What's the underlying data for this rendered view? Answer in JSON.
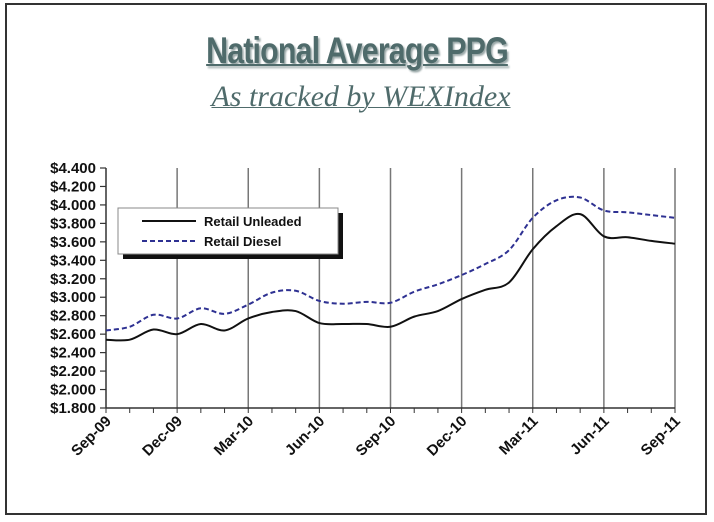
{
  "title": "National Average PPG",
  "subtitle": "As tracked by WEXIndex",
  "colors": {
    "unleaded": "#111111",
    "diesel": "#2e3192",
    "title": "#4f6b6b"
  },
  "chart_data": {
    "type": "line",
    "title": "National Average PPG",
    "subtitle": "As tracked by WEXIndex",
    "xlabel": "",
    "ylabel": "",
    "ylim": [
      1.8,
      4.4
    ],
    "yticks": [
      1.8,
      2.0,
      2.2,
      2.4,
      2.6,
      2.8,
      3.0,
      3.2,
      3.4,
      3.6,
      3.8,
      4.0,
      4.2,
      4.4
    ],
    "ytick_labels": [
      "$1.800",
      "$2.000",
      "$2.200",
      "$2.400",
      "$2.600",
      "$2.800",
      "$3.000",
      "$3.200",
      "$3.400",
      "$3.600",
      "$3.800",
      "$4.000",
      "$4.200",
      "$4.400"
    ],
    "x": [
      "Sep-09",
      "Oct-09",
      "Nov-09",
      "Dec-09",
      "Jan-10",
      "Feb-10",
      "Mar-10",
      "Apr-10",
      "May-10",
      "Jun-10",
      "Jul-10",
      "Aug-10",
      "Sep-10",
      "Oct-10",
      "Nov-10",
      "Dec-10",
      "Jan-11",
      "Feb-11",
      "Mar-11",
      "Apr-11",
      "May-11",
      "Jun-11",
      "Jul-11",
      "Aug-11",
      "Sep-11"
    ],
    "xtick_labels": [
      "Sep-09",
      "Dec-09",
      "Mar-10",
      "Jun-10",
      "Sep-10",
      "Dec-10",
      "Mar-11",
      "Jun-11",
      "Sep-11"
    ],
    "grid": "vertical",
    "legend_position": "upper-left",
    "series": [
      {
        "name": "Retail Unleaded",
        "style": "solid",
        "values": [
          2.54,
          2.54,
          2.65,
          2.6,
          2.71,
          2.64,
          2.77,
          2.84,
          2.85,
          2.72,
          2.71,
          2.71,
          2.68,
          2.79,
          2.85,
          2.98,
          3.08,
          3.16,
          3.52,
          3.77,
          3.9,
          3.66,
          3.65,
          3.61,
          3.58
        ]
      },
      {
        "name": "Retail Diesel",
        "style": "dashed",
        "values": [
          2.64,
          2.68,
          2.81,
          2.77,
          2.88,
          2.82,
          2.92,
          3.05,
          3.07,
          2.96,
          2.93,
          2.95,
          2.94,
          3.06,
          3.14,
          3.24,
          3.36,
          3.51,
          3.86,
          4.05,
          4.08,
          3.94,
          3.92,
          3.89,
          3.86
        ]
      }
    ]
  }
}
